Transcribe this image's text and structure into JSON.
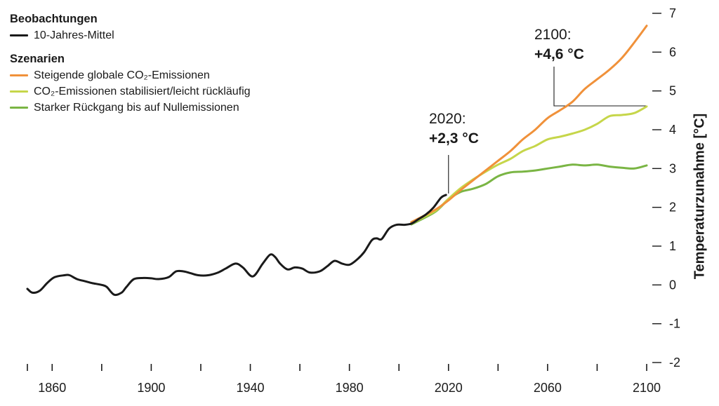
{
  "legend": {
    "observations_title": "Beobachtungen",
    "observations_item": "10-Jahres-Mittel",
    "scenarios_title": "Szenarien",
    "scenario_items": [
      "Steigende globale CO₂-Emissionen",
      "CO₂-Emissionen stabilisiert/leicht rückläufig",
      "Starker Rückgang bis auf Nullemissionen"
    ]
  },
  "annotations": {
    "year_2020": "2020:",
    "value_2020": "+2,3 °C",
    "year_2100": "2100:",
    "value_2100": "+4,6 °C"
  },
  "colors": {
    "observations": "#1a1a1a",
    "rising": "#f0913a",
    "stabilized": "#c6d64a",
    "strong_decline": "#7ab544"
  },
  "chart_data": {
    "type": "line",
    "title": "",
    "xlabel": "",
    "ylabel": "Temperaturzunahme [°C]",
    "xlim": [
      1850,
      2100
    ],
    "ylim": [
      -2,
      7
    ],
    "x_tick_labels": [
      "1860",
      "1900",
      "1940",
      "1980",
      "2020",
      "2060",
      "2100"
    ],
    "y_tick_labels": [
      "7",
      "6",
      "5",
      "4",
      "3",
      "2",
      "1",
      "0",
      "-1",
      "-2"
    ],
    "y_ticks": [
      7,
      6,
      5,
      4,
      3,
      2,
      1,
      0,
      -1,
      -2
    ],
    "x_ticks_minor": [
      1850,
      1860,
      1880,
      1900,
      1920,
      1940,
      1960,
      1980,
      2000,
      2020,
      2040,
      2060,
      2080,
      2100
    ],
    "grid": false,
    "legend_position": "top-left",
    "series": [
      {
        "name": "10-Jahres-Mittel",
        "color_key": "observations",
        "x": [
          1850,
          1852,
          1855,
          1858,
          1861,
          1865,
          1867,
          1870,
          1873,
          1876,
          1880,
          1882,
          1885,
          1888,
          1890,
          1893,
          1897,
          1900,
          1903,
          1907,
          1910,
          1913,
          1916,
          1919,
          1923,
          1927,
          1930,
          1934,
          1937,
          1941,
          1945,
          1948,
          1950,
          1952,
          1955,
          1958,
          1961,
          1964,
          1968,
          1971,
          1974,
          1977,
          1980,
          1983,
          1986,
          1989,
          1991,
          1993,
          1996,
          1999,
          2002,
          2005,
          2008,
          2011,
          2014,
          2017,
          2019
        ],
        "y": [
          -0.1,
          -0.2,
          -0.15,
          0.05,
          0.2,
          0.25,
          0.25,
          0.15,
          0.1,
          0.05,
          0.0,
          -0.05,
          -0.25,
          -0.2,
          -0.05,
          0.15,
          0.18,
          0.17,
          0.15,
          0.2,
          0.35,
          0.35,
          0.3,
          0.25,
          0.25,
          0.32,
          0.42,
          0.55,
          0.45,
          0.22,
          0.55,
          0.78,
          0.72,
          0.55,
          0.4,
          0.45,
          0.42,
          0.32,
          0.35,
          0.48,
          0.62,
          0.55,
          0.52,
          0.65,
          0.85,
          1.15,
          1.2,
          1.18,
          1.45,
          1.55,
          1.55,
          1.58,
          1.7,
          1.82,
          2.0,
          2.25,
          2.32
        ]
      },
      {
        "name": "Steigende globale CO₂-Emissionen",
        "color_key": "rising",
        "x": [
          2005,
          2010,
          2015,
          2020,
          2025,
          2030,
          2035,
          2040,
          2045,
          2050,
          2055,
          2060,
          2065,
          2070,
          2075,
          2080,
          2085,
          2090,
          2095,
          2100
        ],
        "y": [
          1.62,
          1.78,
          1.95,
          2.18,
          2.45,
          2.7,
          2.95,
          3.2,
          3.45,
          3.75,
          4.0,
          4.3,
          4.5,
          4.72,
          5.05,
          5.3,
          5.55,
          5.85,
          6.25,
          6.68
        ]
      },
      {
        "name": "CO₂-Emissionen stabilisiert/leicht rückläufig",
        "color_key": "stabilized",
        "x": [
          2005,
          2010,
          2015,
          2020,
          2025,
          2030,
          2035,
          2040,
          2045,
          2050,
          2055,
          2060,
          2065,
          2070,
          2075,
          2080,
          2085,
          2090,
          2095,
          2100
        ],
        "y": [
          1.58,
          1.75,
          1.92,
          2.22,
          2.5,
          2.72,
          2.92,
          3.1,
          3.25,
          3.45,
          3.58,
          3.75,
          3.82,
          3.9,
          4.0,
          4.15,
          4.35,
          4.38,
          4.43,
          4.6
        ]
      },
      {
        "name": "Starker Rückgang bis auf Nullemissionen",
        "color_key": "strong_decline",
        "x": [
          2005,
          2010,
          2015,
          2020,
          2025,
          2030,
          2035,
          2040,
          2045,
          2050,
          2055,
          2060,
          2065,
          2070,
          2075,
          2080,
          2085,
          2090,
          2095,
          2100
        ],
        "y": [
          1.56,
          1.72,
          1.9,
          2.2,
          2.4,
          2.48,
          2.6,
          2.8,
          2.9,
          2.92,
          2.95,
          3.0,
          3.05,
          3.1,
          3.08,
          3.1,
          3.05,
          3.02,
          3.0,
          3.08
        ]
      }
    ]
  }
}
